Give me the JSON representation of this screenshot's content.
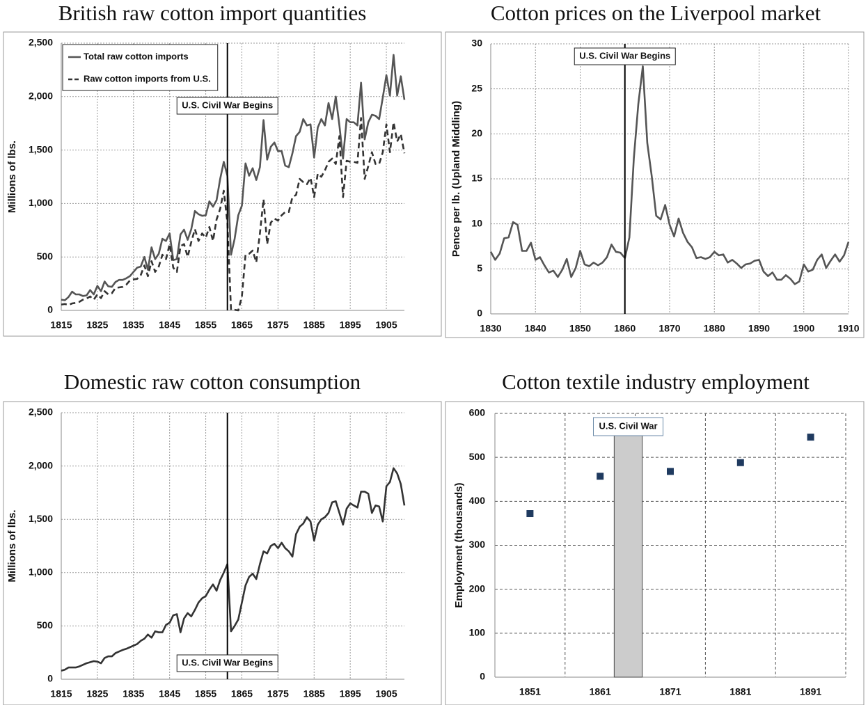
{
  "chart_data": [
    {
      "type": "line",
      "title": "British raw cotton import quantities",
      "y_label": "Millions of lbs.",
      "x": [
        1815,
        1816,
        1817,
        1818,
        1819,
        1820,
        1821,
        1822,
        1823,
        1824,
        1825,
        1826,
        1827,
        1828,
        1829,
        1830,
        1831,
        1832,
        1833,
        1834,
        1835,
        1836,
        1837,
        1838,
        1839,
        1840,
        1841,
        1842,
        1843,
        1844,
        1845,
        1846,
        1847,
        1848,
        1849,
        1850,
        1851,
        1852,
        1853,
        1854,
        1855,
        1856,
        1857,
        1858,
        1859,
        1860,
        1861,
        1862,
        1863,
        1864,
        1865,
        1866,
        1867,
        1868,
        1869,
        1870,
        1871,
        1872,
        1873,
        1874,
        1875,
        1876,
        1877,
        1878,
        1879,
        1880,
        1881,
        1882,
        1883,
        1884,
        1885,
        1886,
        1887,
        1888,
        1889,
        1890,
        1891,
        1892,
        1893,
        1894,
        1895,
        1896,
        1897,
        1898,
        1899,
        1900,
        1901,
        1902,
        1903,
        1904,
        1905,
        1906,
        1907,
        1908,
        1909,
        1910
      ],
      "series": [
        {
          "name": "Total raw cotton imports",
          "color": "#555555",
          "dash": "solid",
          "values": [
            100,
            95,
            125,
            175,
            150,
            150,
            135,
            140,
            190,
            150,
            230,
            180,
            270,
            225,
            220,
            265,
            285,
            285,
            300,
            320,
            360,
            400,
            410,
            500,
            380,
            590,
            480,
            530,
            670,
            650,
            720,
            470,
            480,
            710,
            755,
            660,
            760,
            930,
            900,
            885,
            890,
            1020,
            970,
            1030,
            1230,
            1390,
            1260,
            520,
            670,
            890,
            980,
            1375,
            1260,
            1330,
            1220,
            1340,
            1780,
            1410,
            1530,
            1570,
            1490,
            1490,
            1355,
            1340,
            1470,
            1630,
            1670,
            1790,
            1730,
            1740,
            1430,
            1710,
            1790,
            1730,
            1940,
            1790,
            2000,
            1730,
            1420,
            1790,
            1760,
            1760,
            1730,
            2130,
            1600,
            1760,
            1830,
            1820,
            1790,
            1990,
            2200,
            2010,
            2390,
            2010,
            2190,
            1970
          ]
        },
        {
          "name": "Raw cotton imports from U.S.",
          "color": "#333333",
          "dash": "dashed",
          "values": [
            55,
            60,
            50,
            65,
            70,
            80,
            100,
            110,
            130,
            100,
            150,
            115,
            180,
            150,
            160,
            210,
            215,
            220,
            240,
            280,
            290,
            295,
            330,
            420,
            320,
            460,
            360,
            410,
            520,
            480,
            620,
            400,
            360,
            600,
            620,
            500,
            640,
            760,
            650,
            720,
            680,
            780,
            650,
            850,
            950,
            1120,
            820,
            5,
            5,
            0,
            130,
            520,
            530,
            560,
            450,
            720,
            1040,
            620,
            820,
            860,
            840,
            890,
            920,
            920,
            1060,
            1080,
            1230,
            1200,
            1180,
            1240,
            1060,
            1280,
            1250,
            1310,
            1390,
            1420,
            1370,
            1630,
            1060,
            1400,
            1390,
            1390,
            1380,
            1800,
            1230,
            1350,
            1480,
            1370,
            1370,
            1480,
            1740,
            1480,
            1760,
            1580,
            1650,
            1470
          ]
        }
      ],
      "xlim": [
        1815,
        1910
      ],
      "xticks": [
        1815,
        1825,
        1835,
        1845,
        1855,
        1865,
        1875,
        1885,
        1895,
        1905
      ],
      "ylim": [
        0,
        2500
      ],
      "yticks": [
        0,
        500,
        {
          "value": 1000,
          "label": "1,000"
        },
        {
          "value": 1500,
          "label": "1,500"
        },
        {
          "value": 2000,
          "label": "2,000"
        },
        {
          "value": 2500,
          "label": "2,500"
        }
      ],
      "grid": true,
      "legend": "upper left",
      "annotation": {
        "text": "U.S. Civil War Begins",
        "x": 1861
      }
    },
    {
      "type": "line",
      "title": "Cotton prices on the Liverpool market",
      "y_label": "Pence per lb. (Upland Middling)",
      "x": [
        1830,
        1831,
        1832,
        1833,
        1834,
        1835,
        1836,
        1837,
        1838,
        1839,
        1840,
        1841,
        1842,
        1843,
        1844,
        1845,
        1846,
        1847,
        1848,
        1849,
        1850,
        1851,
        1852,
        1853,
        1854,
        1855,
        1856,
        1857,
        1858,
        1859,
        1860,
        1861,
        1862,
        1863,
        1864,
        1865,
        1866,
        1867,
        1868,
        1869,
        1870,
        1871,
        1872,
        1873,
        1874,
        1875,
        1876,
        1877,
        1878,
        1879,
        1880,
        1881,
        1882,
        1883,
        1884,
        1885,
        1886,
        1887,
        1888,
        1889,
        1890,
        1891,
        1892,
        1893,
        1894,
        1895,
        1896,
        1897,
        1898,
        1899,
        1900,
        1901,
        1902,
        1903,
        1904,
        1905,
        1906,
        1907,
        1908,
        1909,
        1910
      ],
      "series": [
        {
          "name": "Price",
          "color": "#555555",
          "dash": "solid",
          "values": [
            6.9,
            6.0,
            6.7,
            8.4,
            8.5,
            10.2,
            9.9,
            7.0,
            7.0,
            7.9,
            6.0,
            6.3,
            5.4,
            4.6,
            4.8,
            4.1,
            4.9,
            6.1,
            4.1,
            5.1,
            7.0,
            5.5,
            5.3,
            5.7,
            5.4,
            5.7,
            6.3,
            7.7,
            6.9,
            6.8,
            6.2,
            8.5,
            17.3,
            23.3,
            27.5,
            19.0,
            15.3,
            10.9,
            10.5,
            12.1,
            9.9,
            8.6,
            10.6,
            9.0,
            8.0,
            7.4,
            6.2,
            6.3,
            6.1,
            6.3,
            6.9,
            6.5,
            6.6,
            5.7,
            6.0,
            5.6,
            5.1,
            5.5,
            5.6,
            5.9,
            6.0,
            4.7,
            4.2,
            4.6,
            3.8,
            3.8,
            4.3,
            3.9,
            3.3,
            3.6,
            5.5,
            4.7,
            4.9,
            6.0,
            6.6,
            5.1,
            5.9,
            6.6,
            5.8,
            6.5,
            8.0
          ]
        }
      ],
      "xlim": [
        1830,
        1910
      ],
      "xticks": [
        1830,
        1840,
        1850,
        1860,
        1870,
        1880,
        1890,
        1900,
        1910
      ],
      "ylim": [
        0,
        30
      ],
      "yticks": [
        0,
        5,
        10,
        15,
        20,
        25,
        30
      ],
      "grid": true,
      "annotation": {
        "text": "U.S. Civil War Begins",
        "x": 1860
      }
    },
    {
      "type": "line",
      "title": "Domestic raw cotton consumption",
      "y_label": "Millions of lbs.",
      "x": [
        1815,
        1816,
        1817,
        1818,
        1819,
        1820,
        1821,
        1822,
        1823,
        1824,
        1825,
        1826,
        1827,
        1828,
        1829,
        1830,
        1831,
        1832,
        1833,
        1834,
        1835,
        1836,
        1837,
        1838,
        1839,
        1840,
        1841,
        1842,
        1843,
        1844,
        1845,
        1846,
        1847,
        1848,
        1849,
        1850,
        1851,
        1852,
        1853,
        1854,
        1855,
        1856,
        1857,
        1858,
        1859,
        1860,
        1861,
        1862,
        1863,
        1864,
        1865,
        1866,
        1867,
        1868,
        1869,
        1870,
        1871,
        1872,
        1873,
        1874,
        1875,
        1876,
        1877,
        1878,
        1879,
        1880,
        1881,
        1882,
        1883,
        1884,
        1885,
        1886,
        1887,
        1888,
        1889,
        1890,
        1891,
        1892,
        1893,
        1894,
        1895,
        1896,
        1897,
        1898,
        1899,
        1900,
        1901,
        1902,
        1903,
        1904,
        1905,
        1906,
        1907,
        1908,
        1909,
        1910
      ],
      "series": [
        {
          "name": "Consumption",
          "color": "#333333",
          "dash": "solid",
          "values": [
            80,
            90,
            110,
            110,
            110,
            120,
            135,
            150,
            160,
            170,
            165,
            150,
            200,
            215,
            215,
            245,
            260,
            275,
            285,
            300,
            315,
            330,
            360,
            380,
            420,
            390,
            450,
            440,
            440,
            510,
            530,
            600,
            610,
            440,
            570,
            620,
            590,
            650,
            720,
            760,
            780,
            840,
            890,
            830,
            930,
            1000,
            1080,
            450,
            500,
            560,
            720,
            880,
            960,
            990,
            940,
            1080,
            1200,
            1180,
            1250,
            1270,
            1230,
            1280,
            1230,
            1200,
            1150,
            1360,
            1430,
            1460,
            1520,
            1480,
            1300,
            1450,
            1500,
            1520,
            1560,
            1660,
            1670,
            1560,
            1450,
            1600,
            1650,
            1630,
            1610,
            1760,
            1760,
            1740,
            1560,
            1630,
            1620,
            1480,
            1810,
            1850,
            1980,
            1930,
            1830,
            1630
          ]
        }
      ],
      "xlim": [
        1815,
        1910
      ],
      "xticks": [
        1815,
        1825,
        1835,
        1845,
        1855,
        1865,
        1875,
        1885,
        1895,
        1905
      ],
      "ylim": [
        0,
        2500
      ],
      "yticks": [
        0,
        500,
        {
          "value": 1000,
          "label": "1,000"
        },
        {
          "value": 1500,
          "label": "1,500"
        },
        {
          "value": 2000,
          "label": "2,000"
        },
        {
          "value": 2500,
          "label": "2,500"
        }
      ],
      "grid": true,
      "annotation": {
        "text": "U.S. Civil War Begins",
        "x": 1861
      }
    },
    {
      "type": "scatter",
      "title": "Cotton textile industry employment",
      "y_label": "Employment (thousands)",
      "x": [
        1851,
        1861,
        1871,
        1881,
        1891
      ],
      "series": [
        {
          "name": "Employment",
          "color": "#1f3a5f",
          "values": [
            372,
            457,
            468,
            488,
            546
          ]
        }
      ],
      "xlim": [
        1846,
        1896
      ],
      "xticks": [
        1851,
        1861,
        1871,
        1881,
        1891
      ],
      "ylim": [
        0,
        600
      ],
      "yticks": [
        0,
        100,
        200,
        300,
        400,
        500,
        600
      ],
      "grid": true,
      "shade": {
        "text": "U.S. Civil War",
        "from": 1863,
        "to": 1867
      }
    }
  ]
}
